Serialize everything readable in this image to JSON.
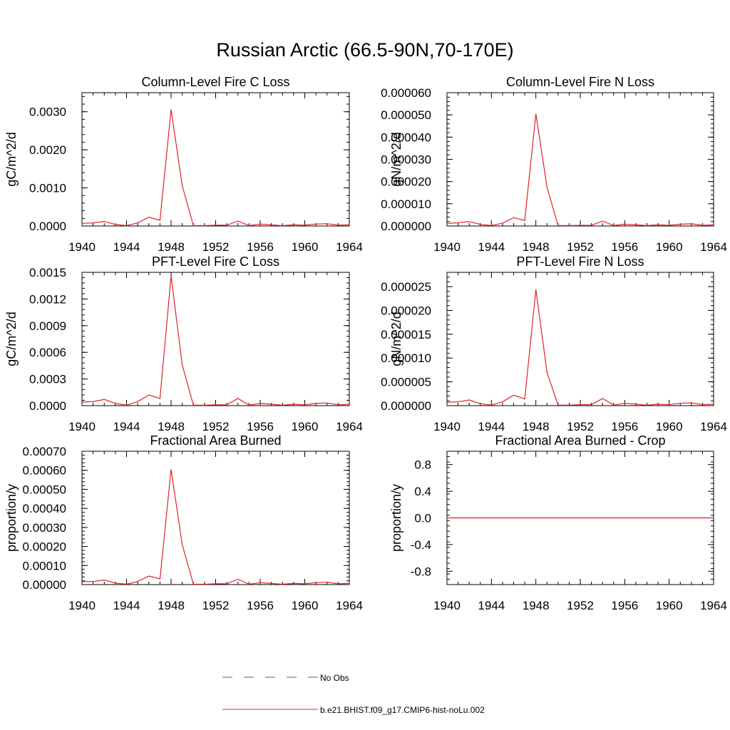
{
  "figure": {
    "title": "Russian Arctic (66.5-90N,70-170E)",
    "legend": [
      {
        "label": "No Obs",
        "color": "#5a5aa8",
        "dash": true
      },
      {
        "label": "b.e21.BHIST.f09_g17.CMIP6-hist-noLu.002",
        "color": "#e0202a",
        "dash": false
      }
    ]
  },
  "chart_data": [
    {
      "type": "line",
      "title": "Column-Level Fire C Loss",
      "ylabel": "gC/m^2/d",
      "xlim": [
        1940,
        1964
      ],
      "ylim": [
        0,
        0.0035
      ],
      "yticks": [
        "0.0000",
        "0.0010",
        "0.0020",
        "0.0030"
      ],
      "ytick_values": [
        0,
        0.001,
        0.002,
        0.003
      ],
      "xticks": [
        "1940",
        "1944",
        "1948",
        "1952",
        "1956",
        "1960",
        "1964"
      ],
      "series": [
        {
          "color": "#e0202a",
          "x": [
            1940,
            1941,
            1942,
            1943,
            1944,
            1945,
            1946,
            1947,
            1948,
            1949,
            1950,
            1951,
            1952,
            1953,
            1954,
            1955,
            1956,
            1957,
            1958,
            1959,
            1960,
            1961,
            1962,
            1963,
            1964
          ],
          "values": [
            7e-05,
            8e-05,
            0.00012,
            4e-05,
            1e-05,
            8e-05,
            0.00023,
            0.00015,
            0.00306,
            0.00106,
            1e-05,
            1e-05,
            2e-05,
            2e-05,
            0.00013,
            1e-05,
            5e-05,
            3e-05,
            1e-05,
            3e-05,
            2e-05,
            5e-05,
            6e-05,
            2e-05,
            3e-05
          ]
        }
      ]
    },
    {
      "type": "line",
      "title": "Column-Level Fire N Loss",
      "ylabel": "gN/m^2/d",
      "xlim": [
        1940,
        1964
      ],
      "ylim": [
        0,
        6e-05
      ],
      "yticks": [
        "0.000000",
        "0.000010",
        "0.000020",
        "0.000030",
        "0.000040",
        "0.000050",
        "0.000060"
      ],
      "ytick_values": [
        0,
        1e-05,
        2e-05,
        3e-05,
        4e-05,
        5e-05,
        6e-05
      ],
      "xticks": [
        "1940",
        "1944",
        "1948",
        "1952",
        "1956",
        "1960",
        "1964"
      ],
      "series": [
        {
          "color": "#e0202a",
          "x": [
            1940,
            1941,
            1942,
            1943,
            1944,
            1945,
            1946,
            1947,
            1948,
            1949,
            1950,
            1951,
            1952,
            1953,
            1954,
            1955,
            1956,
            1957,
            1958,
            1959,
            1960,
            1961,
            1962,
            1963,
            1964
          ],
          "values": [
            1.2e-06,
            1.4e-06,
            2e-06,
            7e-07,
            2e-07,
            1.3e-06,
            3.8e-06,
            2.5e-06,
            5.05e-05,
            1.75e-05,
            2e-07,
            2e-07,
            3e-07,
            3e-07,
            2.2e-06,
            2e-07,
            8e-07,
            5e-07,
            2e-07,
            5e-07,
            3e-07,
            8e-07,
            1e-06,
            3e-07,
            5e-07
          ]
        }
      ]
    },
    {
      "type": "line",
      "title": "PFT-Level Fire C Loss",
      "ylabel": "gC/m^2/d",
      "xlim": [
        1940,
        1964
      ],
      "ylim": [
        0,
        0.0015
      ],
      "yticks": [
        "0.0000",
        "0.0003",
        "0.0006",
        "0.0009",
        "0.0012",
        "0.0015"
      ],
      "ytick_values": [
        0,
        0.0003,
        0.0006,
        0.0009,
        0.0012,
        0.0015
      ],
      "xticks": [
        "1940",
        "1944",
        "1948",
        "1952",
        "1956",
        "1960",
        "1964"
      ],
      "series": [
        {
          "color": "#e0202a",
          "x": [
            1940,
            1941,
            1942,
            1943,
            1944,
            1945,
            1946,
            1947,
            1948,
            1949,
            1950,
            1951,
            1952,
            1953,
            1954,
            1955,
            1956,
            1957,
            1958,
            1959,
            1960,
            1961,
            1962,
            1963,
            1964
          ],
          "values": [
            4e-05,
            4.5e-05,
            7e-05,
            2.5e-05,
            5e-06,
            4.5e-05,
            0.00012,
            8e-05,
            0.00146,
            0.00046,
            5e-06,
            5e-06,
            1e-05,
            1e-05,
            8e-05,
            5e-06,
            2.5e-05,
            1.5e-05,
            5e-06,
            1.5e-05,
            1e-05,
            2.5e-05,
            3e-05,
            1e-05,
            1.5e-05
          ]
        }
      ]
    },
    {
      "type": "line",
      "title": "PFT-Level Fire N Loss",
      "ylabel": "gN/m^2/d",
      "xlim": [
        1940,
        1964
      ],
      "ylim": [
        0,
        2.8e-05
      ],
      "yticks": [
        "0.000000",
        "0.000005",
        "0.000010",
        "0.000015",
        "0.000020",
        "0.000025"
      ],
      "ytick_values": [
        0,
        5e-06,
        1e-05,
        1.5e-05,
        2e-05,
        2.5e-05
      ],
      "xticks": [
        "1940",
        "1944",
        "1948",
        "1952",
        "1956",
        "1960",
        "1964"
      ],
      "series": [
        {
          "color": "#e0202a",
          "x": [
            1940,
            1941,
            1942,
            1943,
            1944,
            1945,
            1946,
            1947,
            1948,
            1949,
            1950,
            1951,
            1952,
            1953,
            1954,
            1955,
            1956,
            1957,
            1958,
            1959,
            1960,
            1961,
            1962,
            1963,
            1964
          ],
          "values": [
            7e-07,
            8e-07,
            1.2e-06,
            4e-07,
            1e-07,
            8e-07,
            2.2e-06,
            1.4e-06,
            2.44e-05,
            7e-06,
            1e-07,
            1e-07,
            2e-07,
            2e-07,
            1.5e-06,
            1e-07,
            5e-07,
            3e-07,
            1e-07,
            3e-07,
            2e-07,
            5e-07,
            6e-07,
            2e-07,
            3e-07
          ]
        }
      ]
    },
    {
      "type": "line",
      "title": "Fractional Area Burned",
      "ylabel": "proportion/y",
      "xlim": [
        1940,
        1964
      ],
      "ylim": [
        0,
        0.0007
      ],
      "yticks": [
        "0.00000",
        "0.00010",
        "0.00020",
        "0.00030",
        "0.00040",
        "0.00050",
        "0.00060",
        "0.00070"
      ],
      "ytick_values": [
        0,
        0.0001,
        0.0002,
        0.0003,
        0.0004,
        0.0005,
        0.0006,
        0.0007
      ],
      "xticks": [
        "1940",
        "1944",
        "1948",
        "1952",
        "1956",
        "1960",
        "1964"
      ],
      "series": [
        {
          "color": "#e0202a",
          "x": [
            1940,
            1941,
            1942,
            1943,
            1944,
            1945,
            1946,
            1947,
            1948,
            1949,
            1950,
            1951,
            1952,
            1953,
            1954,
            1955,
            1956,
            1957,
            1958,
            1959,
            1960,
            1961,
            1962,
            1963,
            1964
          ],
          "values": [
            1.5e-05,
            1.6e-05,
            2.4e-05,
            8e-06,
            2e-06,
            1.6e-05,
            4.5e-05,
            3e-05,
            0.000605,
            0.00021,
            2e-06,
            2e-06,
            4e-06,
            4e-06,
            2.8e-05,
            2e-06,
            1e-05,
            6e-06,
            2e-06,
            6e-06,
            4e-06,
            1e-05,
            1.2e-05,
            4e-06,
            6e-06
          ]
        }
      ]
    },
    {
      "type": "line",
      "title": "Fractional Area Burned - Crop",
      "ylabel": "proportion/y",
      "xlim": [
        1940,
        1964
      ],
      "ylim": [
        -1,
        1
      ],
      "yticks": [
        "-0.8",
        "-0.4",
        "0.0",
        "0.4",
        "0.8"
      ],
      "ytick_values": [
        -0.8,
        -0.4,
        0,
        0.4,
        0.8
      ],
      "xticks": [
        "1940",
        "1944",
        "1948",
        "1952",
        "1956",
        "1960",
        "1964"
      ],
      "series": [
        {
          "color": "#e0202a",
          "x": [
            1940,
            1941,
            1942,
            1943,
            1944,
            1945,
            1946,
            1947,
            1948,
            1949,
            1950,
            1951,
            1952,
            1953,
            1954,
            1955,
            1956,
            1957,
            1958,
            1959,
            1960,
            1961,
            1962,
            1963,
            1964
          ],
          "values": [
            0,
            0,
            0,
            0,
            0,
            0,
            0,
            0,
            0,
            0,
            0,
            0,
            0,
            0,
            0,
            0,
            0,
            0,
            0,
            0,
            0,
            0,
            0,
            0,
            0
          ]
        }
      ]
    }
  ]
}
